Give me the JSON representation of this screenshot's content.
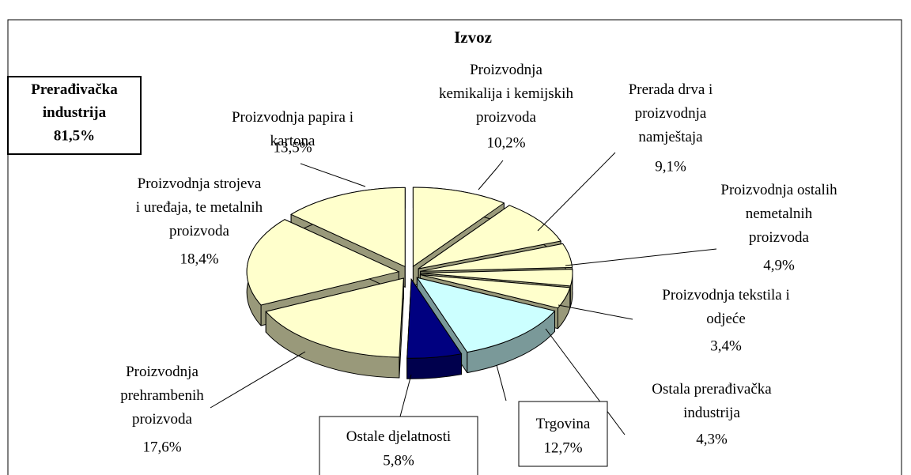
{
  "chart_data": {
    "type": "pie",
    "title": "Izvoz",
    "categories": [
      "Proizvodnja kemikalija i kemijskih proizvoda",
      "Prerada drva i proizvodnja namještaja",
      "Proizvodnja ostalih nemetalnih proizvoda",
      "Proizvodnja tekstila i odjeće",
      "Ostala prerađivačka industrija",
      "Trgovina",
      "Ostale djelatnosti",
      "Proizvodnja prehrambenih proizvoda",
      "Proizvodnja strojeva i uređaja, te metalnih proizvoda",
      "Proizvodnja papira i kartona"
    ],
    "values": [
      10.2,
      9.1,
      4.9,
      3.4,
      4.3,
      12.7,
      5.8,
      17.6,
      18.4,
      13.5
    ],
    "value_labels": [
      "10,2%",
      "9,1%",
      "4,9%",
      "3,4%",
      "4,3%",
      "12,7%",
      "5,8%",
      "17,6%",
      "18,4%",
      "13,5%"
    ],
    "colors": [
      "#ffffcc",
      "#ffffcc",
      "#ffffcc",
      "#ffffcc",
      "#ffffcc",
      "#ccffff",
      "#000080",
      "#ffffcc",
      "#ffffcc",
      "#ffffcc"
    ],
    "annotation": {
      "text": "Prerađivačka industrija",
      "value": 81.5,
      "label": "81,5%"
    }
  }
}
